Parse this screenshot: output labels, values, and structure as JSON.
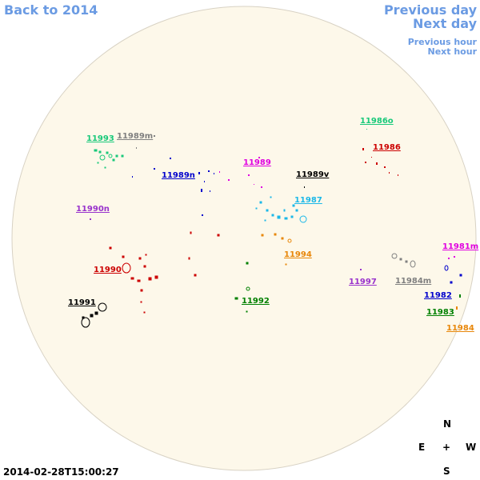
{
  "nav": {
    "back": "Back to 2014",
    "prev_day": "Previous day",
    "next_day": "Next day",
    "prev_hour": "Previous hour",
    "next_hour": "Next hour"
  },
  "timestamp": "2014-02-28T15:00:27",
  "compass": {
    "n": "N",
    "s": "S",
    "e": "E",
    "w": "W",
    "center": "+"
  },
  "colors": {
    "disk_fill": "#fdf8ea",
    "disk_stroke": "#d8d2c4",
    "nav": "#6b9be3"
  },
  "regions": [
    {
      "id": "11993",
      "color": "#19c97a"
    },
    {
      "id": "11989m",
      "color": "#808080"
    },
    {
      "id": "11989n",
      "color": "#0000cc"
    },
    {
      "id": "11989",
      "color": "#e000e0"
    },
    {
      "id": "11989v",
      "color": "#000000"
    },
    {
      "id": "11986o",
      "color": "#19c97a"
    },
    {
      "id": "11986",
      "color": "#cc0000"
    },
    {
      "id": "11990n",
      "color": "#9933cc"
    },
    {
      "id": "11987",
      "color": "#1cb8e8"
    },
    {
      "id": "11994",
      "color": "#e8870a"
    },
    {
      "id": "11981m",
      "color": "#e000e0"
    },
    {
      "id": "11990",
      "color": "#cc0000"
    },
    {
      "id": "11997",
      "color": "#9933cc"
    },
    {
      "id": "11984m",
      "color": "#808080"
    },
    {
      "id": "11982",
      "color": "#0000cc"
    },
    {
      "id": "11992",
      "color": "#008000"
    },
    {
      "id": "11991",
      "color": "#000000"
    },
    {
      "id": "11983",
      "color": "#008000"
    },
    {
      "id": "11984",
      "color": "#e8870a"
    }
  ]
}
